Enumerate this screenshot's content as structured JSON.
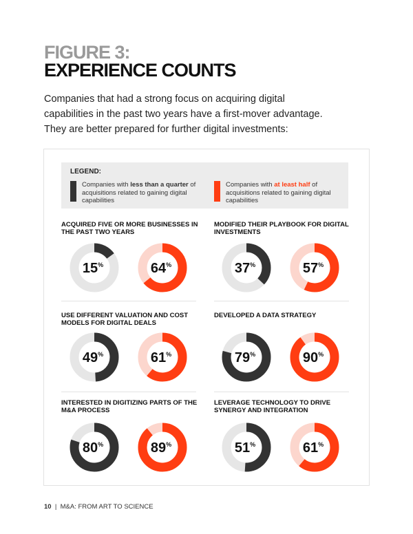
{
  "title_line1": "FIGURE 3:",
  "title_line2": "EXPERIENCE COUNTS",
  "intro": "Companies that had a strong focus on acquiring digital capabilities in the past two years have a first-mover advantage. They are better prepared for further digital investments:",
  "legend": {
    "title": "LEGEND:",
    "dark": {
      "pre": "Companies with ",
      "bold": "less than a quarter",
      "post": " of acquisitions related to gaining digital capabilities"
    },
    "orange": {
      "pre": "Companies with ",
      "bold": "at least half",
      "post": " of acquisitions related to gaining digital capabilities"
    }
  },
  "colors": {
    "dark": "#333333",
    "dark_track": "#e6e6e6",
    "orange": "#ff3d12",
    "orange_track": "#fcd6cd"
  },
  "footer": {
    "page": "10",
    "text": "M&A: FROM ART TO SCIENCE"
  },
  "chart_data": {
    "type": "donut",
    "series": [
      "less than a quarter",
      "at least half"
    ],
    "unit": "%",
    "panels": [
      {
        "title": "ACQUIRED FIVE OR MORE BUSINESSES IN THE PAST TWO YEARS",
        "values": [
          15,
          64
        ]
      },
      {
        "title": "MODIFIED THEIR PLAYBOOK FOR DIGITAL INVESTMENTS",
        "values": [
          37,
          57
        ]
      },
      {
        "title": "USE DIFFERENT VALUATION AND COST MODELS FOR DIGITAL DEALS",
        "values": [
          49,
          61
        ]
      },
      {
        "title": "DEVELOPED A DATA STRATEGY",
        "values": [
          79,
          90
        ]
      },
      {
        "title": "INTERESTED IN DIGITIZING PARTS OF THE M&A PROCESS",
        "values": [
          80,
          89
        ]
      },
      {
        "title": "LEVERAGE TECHNOLOGY TO DRIVE SYNERGY AND INTEGRATION",
        "values": [
          51,
          61
        ]
      }
    ]
  }
}
